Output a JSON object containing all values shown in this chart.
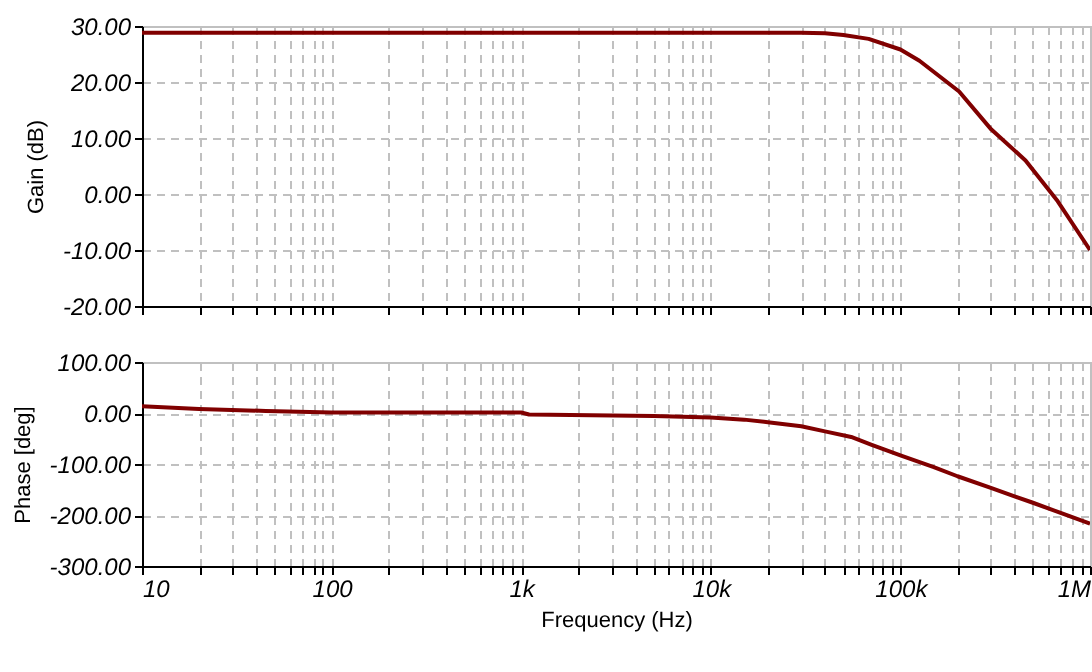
{
  "chart_data": [
    {
      "type": "line",
      "ylabel": "Gain (dB)",
      "log": "x",
      "grid": true,
      "tick_labels": "y",
      "xlim": [
        10,
        1000000
      ],
      "xticks": [
        {
          "value": 10,
          "label": null
        },
        {
          "value": 20,
          "label": null
        },
        {
          "value": 30,
          "label": null
        },
        {
          "value": 40,
          "label": null
        },
        {
          "value": 50,
          "label": null
        },
        {
          "value": 60,
          "label": null
        },
        {
          "value": 70,
          "label": null
        },
        {
          "value": 80,
          "label": null
        },
        {
          "value": 90,
          "label": null
        },
        {
          "value": 100,
          "label": null
        },
        {
          "value": 200,
          "label": null
        },
        {
          "value": 300,
          "label": null
        },
        {
          "value": 400,
          "label": null
        },
        {
          "value": 500,
          "label": null
        },
        {
          "value": 600,
          "label": null
        },
        {
          "value": 700,
          "label": null
        },
        {
          "value": 800,
          "label": null
        },
        {
          "value": 900,
          "label": null
        },
        {
          "value": 1000,
          "label": null
        },
        {
          "value": 2000,
          "label": null
        },
        {
          "value": 3000,
          "label": null
        },
        {
          "value": 4000,
          "label": null
        },
        {
          "value": 5000,
          "label": null
        },
        {
          "value": 6000,
          "label": null
        },
        {
          "value": 7000,
          "label": null
        },
        {
          "value": 8000,
          "label": null
        },
        {
          "value": 9000,
          "label": null
        },
        {
          "value": 10000,
          "label": null
        },
        {
          "value": 20000,
          "label": null
        },
        {
          "value": 30000,
          "label": null
        },
        {
          "value": 40000,
          "label": null
        },
        {
          "value": 50000,
          "label": null
        },
        {
          "value": 60000,
          "label": null
        },
        {
          "value": 70000,
          "label": null
        },
        {
          "value": 80000,
          "label": null
        },
        {
          "value": 90000,
          "label": null
        },
        {
          "value": 100000,
          "label": null
        },
        {
          "value": 200000,
          "label": null
        },
        {
          "value": 300000,
          "label": null
        },
        {
          "value": 400000,
          "label": null
        },
        {
          "value": 500000,
          "label": null
        },
        {
          "value": 600000,
          "label": null
        },
        {
          "value": 700000,
          "label": null
        },
        {
          "value": 800000,
          "label": null
        },
        {
          "value": 900000,
          "label": null
        },
        {
          "value": 1000000,
          "label": null
        }
      ],
      "ylim": [
        -20,
        30
      ],
      "yticks": [
        {
          "value": -20,
          "label": "-20.00"
        },
        {
          "value": -10,
          "label": "-10.00"
        },
        {
          "value": 0,
          "label": "0.00"
        },
        {
          "value": 10,
          "label": "10.00"
        },
        {
          "value": 20,
          "label": "20.00"
        },
        {
          "value": 30,
          "label": "30.00"
        }
      ],
      "x": [
        10,
        1000,
        10000,
        30000,
        40000,
        50000,
        68000,
        100000,
        126000,
        204000,
        302000,
        457000,
        676000,
        1000000
      ],
      "series": [
        {
          "color": "#800000",
          "values": [
            28.8,
            28.8,
            28.8,
            28.8,
            28.7,
            28.4,
            27.7,
            25.8,
            23.8,
            18.3,
            11.5,
            6.0,
            -1.3,
            -10.0
          ]
        }
      ]
    },
    {
      "type": "line",
      "xlabel": "Frequency (Hz)",
      "ylabel": "Phase [deg]",
      "log": "x",
      "grid": true,
      "xlim": [
        10,
        1000000
      ],
      "xticks": [
        10,
        {
          "value": 20,
          "label": null
        },
        {
          "value": 30,
          "label": null
        },
        {
          "value": 40,
          "label": null
        },
        {
          "value": 50,
          "label": null
        },
        {
          "value": 60,
          "label": null
        },
        {
          "value": 70,
          "label": null
        },
        {
          "value": 80,
          "label": null
        },
        {
          "value": 90,
          "label": null
        },
        100,
        {
          "value": 200,
          "label": null
        },
        {
          "value": 300,
          "label": null
        },
        {
          "value": 400,
          "label": null
        },
        {
          "value": 500,
          "label": null
        },
        {
          "value": 600,
          "label": null
        },
        {
          "value": 700,
          "label": null
        },
        {
          "value": 800,
          "label": null
        },
        {
          "value": 900,
          "label": null
        },
        {
          "value": 1000,
          "label": "1k"
        },
        {
          "value": 2000,
          "label": null
        },
        {
          "value": 3000,
          "label": null
        },
        {
          "value": 4000,
          "label": null
        },
        {
          "value": 5000,
          "label": null
        },
        {
          "value": 6000,
          "label": null
        },
        {
          "value": 7000,
          "label": null
        },
        {
          "value": 8000,
          "label": null
        },
        {
          "value": 9000,
          "label": null
        },
        {
          "value": 10000,
          "label": "10k"
        },
        {
          "value": 20000,
          "label": null
        },
        {
          "value": 30000,
          "label": null
        },
        {
          "value": 40000,
          "label": null
        },
        {
          "value": 50000,
          "label": null
        },
        {
          "value": 60000,
          "label": null
        },
        {
          "value": 70000,
          "label": null
        },
        {
          "value": 80000,
          "label": null
        },
        {
          "value": 90000,
          "label": null
        },
        {
          "value": 100000,
          "label": "100k"
        },
        {
          "value": 200000,
          "label": null
        },
        {
          "value": 300000,
          "label": null
        },
        {
          "value": 400000,
          "label": null
        },
        {
          "value": 500000,
          "label": null
        },
        {
          "value": 600000,
          "label": null
        },
        {
          "value": 700000,
          "label": null
        },
        {
          "value": 800000,
          "label": null
        },
        {
          "value": 900000,
          "label": null
        },
        {
          "value": 1000000,
          "label": "1M"
        }
      ],
      "ylim": [
        -300,
        100
      ],
      "yticks": [
        {
          "value": -300,
          "label": "-300.00"
        },
        {
          "value": -200,
          "label": "-200.00"
        },
        {
          "value": -100,
          "label": "-100.00"
        },
        {
          "value": 0,
          "label": "0.00"
        },
        {
          "value": 100,
          "label": "100.00"
        }
      ],
      "x": [
        10,
        20,
        45,
        100,
        1000,
        1100,
        5000,
        10000,
        15000,
        20000,
        30000,
        40000,
        55000,
        70000,
        100000,
        150000,
        200000,
        300000,
        500000,
        700000,
        1000000
      ],
      "series": [
        {
          "color": "#800000",
          "values": [
            13,
            8,
            4,
            1,
            1,
            -3,
            -6,
            -9,
            -13,
            -18,
            -26,
            -36,
            -47,
            -62,
            -83,
            -106,
            -124,
            -147,
            -176,
            -196,
            -217
          ]
        }
      ]
    }
  ]
}
